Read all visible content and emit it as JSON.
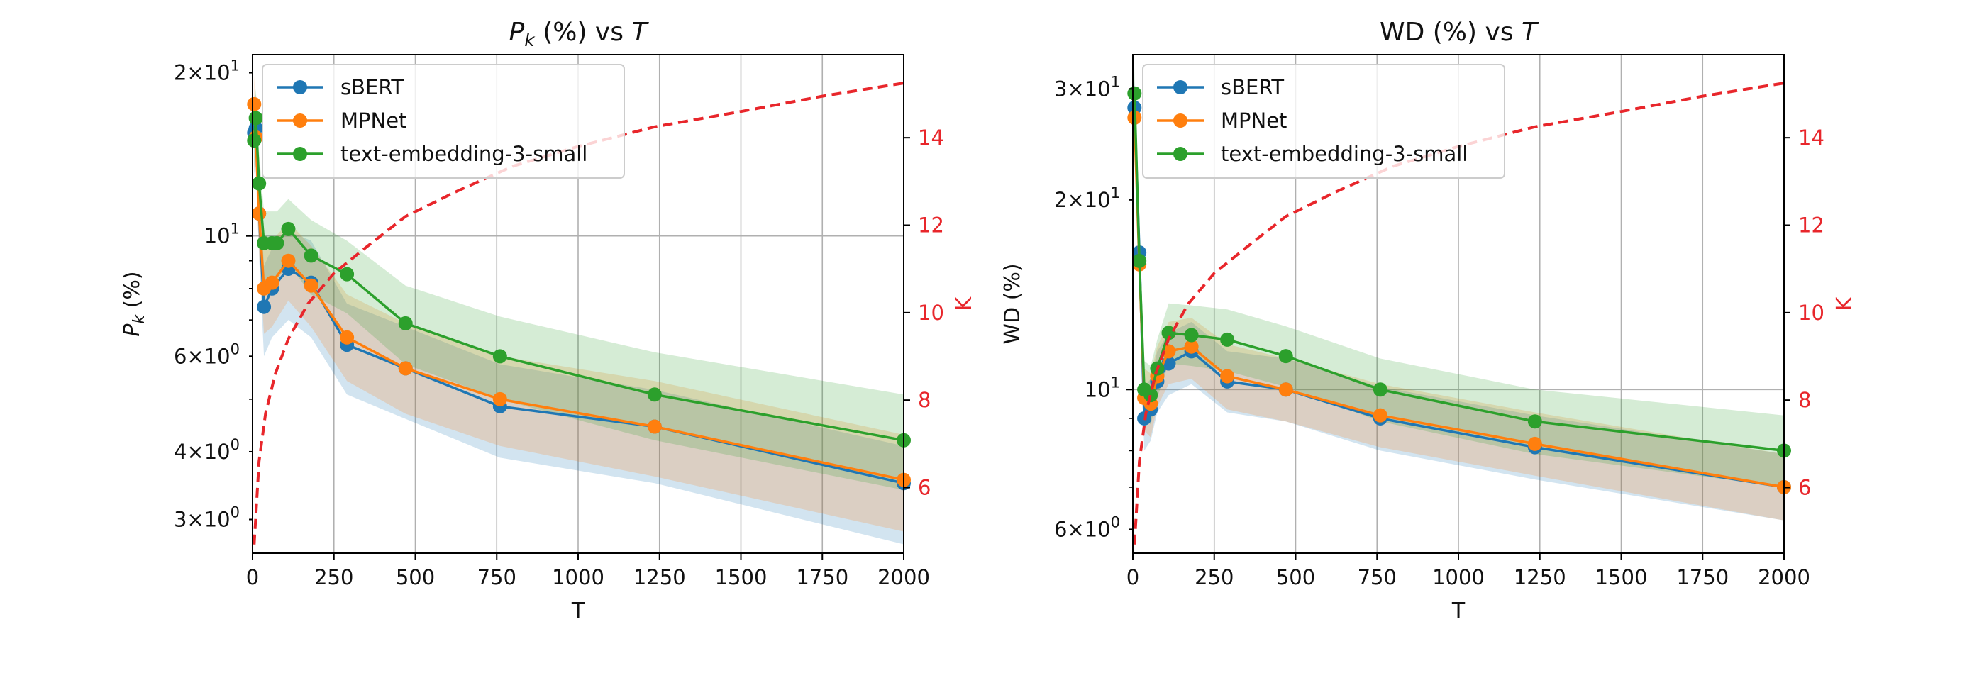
{
  "chart_data": [
    {
      "type": "line",
      "title_main": "P",
      "title_sub": "k",
      "title_rest": " (%) vs ",
      "title_var": "T",
      "xlabel": "T",
      "ylabel_main": "P",
      "ylabel_sub": "k",
      "ylabel_rest": " (%)",
      "y2label": "K",
      "xlim": [
        0,
        2000
      ],
      "ylim_log": [
        2.6,
        21.6
      ],
      "y2lim": [
        4.5,
        15.9
      ],
      "xticks": [
        0,
        250,
        500,
        750,
        1000,
        1250,
        1500,
        1750,
        2000
      ],
      "yticks_major": [
        {
          "value": 10,
          "label": "10",
          "sup": "1"
        }
      ],
      "yticks_minor": [
        {
          "value": 3,
          "label": "3×10",
          "sup": "0"
        },
        {
          "value": 4,
          "label": "4×10",
          "sup": "0"
        },
        {
          "value": 6,
          "label": "6×10",
          "sup": "0"
        },
        {
          "value": 20,
          "label": "2×10",
          "sup": "1"
        }
      ],
      "y2ticks": [
        6,
        8,
        10,
        12,
        14
      ],
      "series": [
        {
          "name": "sBERT",
          "color": "#1f77b4",
          "x": [
            5,
            10,
            20,
            35,
            60,
            110,
            180,
            290,
            470,
            760,
            1235,
            2000
          ],
          "y": [
            15.5,
            15.8,
            11.0,
            7.4,
            8.0,
            8.7,
            8.2,
            6.3,
            5.7,
            4.85,
            4.45,
            3.5
          ],
          "band_lower": [
            13.0,
            13.5,
            9.2,
            6.0,
            6.5,
            7.0,
            6.5,
            5.1,
            4.6,
            3.9,
            3.5,
            2.7
          ],
          "band_upper": [
            18.0,
            18.2,
            12.8,
            8.8,
            9.5,
            10.2,
            9.8,
            7.5,
            6.8,
            5.8,
            5.2,
            4.1
          ]
        },
        {
          "name": "MPNet",
          "color": "#ff7f0e",
          "x": [
            5,
            10,
            20,
            35,
            60,
            110,
            180,
            290,
            470,
            760,
            1235,
            2000
          ],
          "y": [
            17.5,
            15.2,
            11.0,
            8.0,
            8.2,
            9.0,
            8.1,
            6.5,
            5.7,
            5.0,
            4.45,
            3.55
          ],
          "band_lower": [
            15.0,
            13.0,
            9.3,
            6.6,
            6.8,
            7.6,
            6.8,
            5.4,
            4.7,
            4.1,
            3.6,
            2.85
          ],
          "band_upper": [
            19.8,
            17.5,
            12.8,
            9.6,
            9.8,
            10.6,
            9.6,
            7.8,
            6.9,
            6.0,
            5.4,
            4.3
          ]
        },
        {
          "name": "text-embedding-3-small",
          "color": "#2ca02c",
          "x": [
            5,
            10,
            20,
            35,
            60,
            75,
            110,
            180,
            290,
            470,
            760,
            1235,
            2000
          ],
          "y": [
            15.0,
            16.5,
            12.5,
            9.7,
            9.7,
            9.7,
            10.3,
            9.2,
            8.5,
            6.9,
            6.0,
            5.1,
            4.2
          ],
          "band_lower": [
            13.2,
            14.5,
            10.8,
            8.3,
            8.3,
            8.3,
            8.9,
            7.8,
            7.2,
            5.8,
            5.0,
            4.2,
            3.4
          ],
          "band_upper": [
            17.0,
            18.7,
            14.3,
            11.1,
            11.1,
            11.1,
            11.7,
            10.7,
            9.8,
            8.1,
            7.1,
            6.1,
            5.1
          ]
        }
      ],
      "secondary_series": {
        "name": "K",
        "color": "#e8262b",
        "style": "dashed",
        "x": [
          5,
          20,
          40,
          70,
          110,
          170,
          250,
          350,
          470,
          620,
          800,
          1000,
          1235,
          1500,
          1750,
          2000
        ],
        "y": [
          4.7,
          6.6,
          7.7,
          8.6,
          9.4,
          10.2,
          10.9,
          11.5,
          12.2,
          12.75,
          13.35,
          13.8,
          14.25,
          14.6,
          14.95,
          15.25
        ]
      },
      "legend": [
        "sBERT",
        "MPNet",
        "text-embedding-3-small"
      ],
      "legend_position": "upper left",
      "grid": true
    },
    {
      "type": "line",
      "title_main": "WD",
      "title_sub": "",
      "title_rest": " (%) vs ",
      "title_var": "T",
      "xlabel": "T",
      "ylabel_main": "WD (%)",
      "ylabel_sub": "",
      "ylabel_rest": "",
      "y2label": "K",
      "xlim": [
        0,
        2000
      ],
      "ylim_log": [
        5.5,
        34.0
      ],
      "y2lim": [
        4.5,
        15.9
      ],
      "xticks": [
        0,
        250,
        500,
        750,
        1000,
        1250,
        1500,
        1750,
        2000
      ],
      "yticks_major": [
        {
          "value": 10,
          "label": "10",
          "sup": "1"
        }
      ],
      "yticks_minor": [
        {
          "value": 6,
          "label": "6×10",
          "sup": "0"
        },
        {
          "value": 20,
          "label": "2×10",
          "sup": "1"
        },
        {
          "value": 30,
          "label": "3×10",
          "sup": "1"
        }
      ],
      "y2ticks": [
        6,
        8,
        10,
        12,
        14
      ],
      "series": [
        {
          "name": "sBERT",
          "color": "#1f77b4",
          "x": [
            5,
            20,
            35,
            55,
            75,
            110,
            180,
            290,
            470,
            760,
            1235,
            2000
          ],
          "y": [
            28.0,
            16.5,
            9.0,
            9.3,
            10.3,
            11.0,
            11.5,
            10.3,
            10.0,
            9.0,
            8.1,
            7.0
          ],
          "band_lower": [
            25.0,
            14.7,
            8.0,
            8.3,
            9.2,
            9.8,
            10.2,
            9.2,
            8.9,
            8.0,
            7.2,
            6.2
          ],
          "band_upper": [
            31.0,
            18.4,
            10.1,
            10.4,
            11.5,
            12.3,
            12.8,
            11.5,
            11.2,
            10.1,
            9.1,
            7.9
          ]
        },
        {
          "name": "MPNet",
          "color": "#ff7f0e",
          "x": [
            5,
            20,
            35,
            55,
            75,
            110,
            180,
            290,
            470,
            760,
            1235,
            2000
          ],
          "y": [
            27.0,
            15.8,
            9.7,
            9.5,
            10.5,
            11.5,
            11.7,
            10.5,
            10.0,
            9.1,
            8.2,
            7.0
          ],
          "band_lower": [
            24.0,
            14.0,
            8.6,
            8.4,
            9.4,
            10.2,
            10.4,
            9.3,
            8.9,
            8.1,
            7.3,
            6.2
          ],
          "band_upper": [
            30.0,
            17.6,
            10.8,
            10.6,
            11.7,
            12.8,
            13.0,
            11.8,
            11.2,
            10.2,
            9.2,
            7.9
          ]
        },
        {
          "name": "text-embedding-3-small",
          "color": "#2ca02c",
          "x": [
            5,
            20,
            35,
            55,
            75,
            110,
            180,
            290,
            470,
            760,
            1235,
            2000
          ],
          "y": [
            29.5,
            16.0,
            10.0,
            9.8,
            10.8,
            12.3,
            12.2,
            12.0,
            11.3,
            10.0,
            8.9,
            8.0
          ],
          "band_lower": [
            26.5,
            14.3,
            9.0,
            8.8,
            9.7,
            11.0,
            10.9,
            10.7,
            10.1,
            8.9,
            7.9,
            7.0
          ],
          "band_upper": [
            32.5,
            17.8,
            11.1,
            10.9,
            12.0,
            13.7,
            13.6,
            13.4,
            12.6,
            11.2,
            10.0,
            9.1
          ]
        }
      ],
      "secondary_series": {
        "name": "K",
        "color": "#e8262b",
        "style": "dashed",
        "x": [
          5,
          20,
          40,
          70,
          110,
          170,
          250,
          350,
          470,
          620,
          800,
          1000,
          1235,
          1500,
          1750,
          2000
        ],
        "y": [
          4.7,
          6.6,
          7.7,
          8.6,
          9.4,
          10.2,
          10.9,
          11.5,
          12.2,
          12.75,
          13.35,
          13.8,
          14.25,
          14.6,
          14.95,
          15.25
        ]
      },
      "legend": [
        "sBERT",
        "MPNet",
        "text-embedding-3-small"
      ],
      "legend_position": "upper left",
      "grid": true
    }
  ]
}
